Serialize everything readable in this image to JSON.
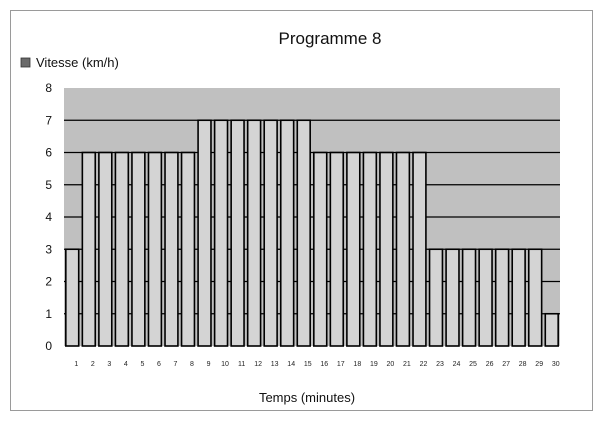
{
  "chart_data": {
    "type": "bar",
    "title": "Programme 8",
    "legend": {
      "label": "Vitesse (km/h)",
      "placement": "top-left"
    },
    "xlabel": "Temps (minutes)",
    "ylabel": "",
    "ylim": [
      0,
      8
    ],
    "yticks": [
      "0",
      "1",
      "2",
      "3",
      "4",
      "5",
      "6",
      "7",
      "8"
    ],
    "grid": true,
    "categories": [
      "1",
      "2",
      "3",
      "4",
      "5",
      "6",
      "7",
      "8",
      "9",
      "10",
      "11",
      "12",
      "13",
      "14",
      "15",
      "16",
      "17",
      "18",
      "19",
      "20",
      "21",
      "22",
      "23",
      "24",
      "25",
      "26",
      "27",
      "28",
      "29",
      "30"
    ],
    "values": [
      3,
      6,
      6,
      6,
      6,
      6,
      6,
      6,
      7,
      7,
      7,
      7,
      7,
      7,
      7,
      6,
      6,
      6,
      6,
      6,
      6,
      6,
      3,
      3,
      3,
      3,
      3,
      3,
      3,
      1
    ],
    "colors": {
      "plot_background": "#c0c0c0",
      "bar_fill": "#d4d4d4",
      "bar_edge": "#000000",
      "gridline": "#000000",
      "legend_swatch": "#6a6a6a"
    }
  }
}
